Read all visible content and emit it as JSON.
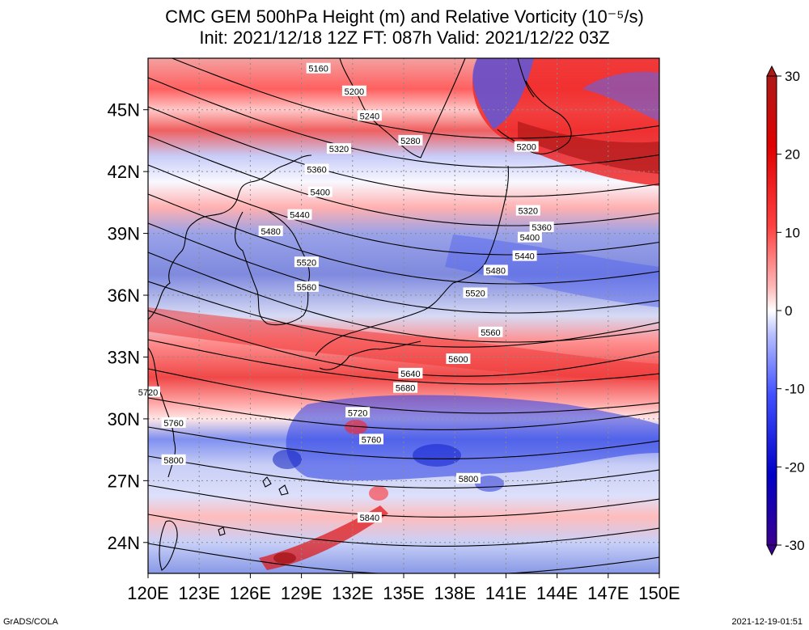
{
  "title": {
    "line1": "CMC GEM 500hPa Height (m) and Relative Vorticity (10⁻⁵/s)",
    "line2": "Init: 2021/12/18 12Z  FT: 087h  Valid: 2021/12/22 03Z"
  },
  "footer": {
    "left": "GrADS/COLA",
    "right": "2021-12-19-01:51"
  },
  "axes": {
    "lon_labels": [
      "120E",
      "123E",
      "126E",
      "129E",
      "132E",
      "135E",
      "138E",
      "141E",
      "144E",
      "147E",
      "150E"
    ],
    "lat_labels": [
      "24N",
      "27N",
      "30N",
      "33N",
      "36N",
      "39N",
      "42N",
      "45N"
    ],
    "lon_range": [
      120,
      150
    ],
    "lat_range": [
      22.5,
      47.5
    ]
  },
  "colorbar": {
    "ticks": [
      "30",
      "20",
      "10",
      "0",
      "-10",
      "-20",
      "-30"
    ],
    "colors_top_to_bottom": [
      "#b01818",
      "#e00000",
      "#ff4040",
      "#ff9a9a",
      "#ffffff",
      "#9aa8ff",
      "#4050ff",
      "#0000c8",
      "#3a0090"
    ]
  },
  "contour_labels": [
    {
      "text": "5160",
      "lon": 130.0,
      "lat": 47.0
    },
    {
      "text": "5200",
      "lon": 132.1,
      "lat": 45.9
    },
    {
      "text": "5240",
      "lon": 133.0,
      "lat": 44.7
    },
    {
      "text": "5280",
      "lon": 135.4,
      "lat": 43.5
    },
    {
      "text": "5320",
      "lon": 131.2,
      "lat": 43.1
    },
    {
      "text": "5360",
      "lon": 129.9,
      "lat": 42.1
    },
    {
      "text": "5400",
      "lon": 130.1,
      "lat": 41.0
    },
    {
      "text": "5440",
      "lon": 128.9,
      "lat": 39.9
    },
    {
      "text": "5480",
      "lon": 127.2,
      "lat": 39.1
    },
    {
      "text": "5520",
      "lon": 129.3,
      "lat": 37.6
    },
    {
      "text": "5560",
      "lon": 129.3,
      "lat": 36.4
    },
    {
      "text": "5600",
      "lon": 138.2,
      "lat": 32.9
    },
    {
      "text": "5640",
      "lon": 135.4,
      "lat": 32.2
    },
    {
      "text": "5680",
      "lon": 135.1,
      "lat": 31.5
    },
    {
      "text": "5720",
      "lon": 132.3,
      "lat": 30.3
    },
    {
      "text": "5760",
      "lon": 133.1,
      "lat": 29.0
    },
    {
      "text": "5800",
      "lon": 138.8,
      "lat": 27.1
    },
    {
      "text": "5840",
      "lon": 133.0,
      "lat": 25.2
    },
    {
      "text": "5200",
      "lon": 142.2,
      "lat": 43.2
    },
    {
      "text": "5320",
      "lon": 142.3,
      "lat": 40.1
    },
    {
      "text": "5360",
      "lon": 143.1,
      "lat": 39.3
    },
    {
      "text": "5400",
      "lon": 142.4,
      "lat": 38.8
    },
    {
      "text": "5440",
      "lon": 142.1,
      "lat": 37.9
    },
    {
      "text": "5480",
      "lon": 140.4,
      "lat": 37.2
    },
    {
      "text": "5520",
      "lon": 139.2,
      "lat": 36.1
    },
    {
      "text": "5560",
      "lon": 140.1,
      "lat": 34.2
    },
    {
      "text": "5720",
      "lon": 120.0,
      "lat": 31.3
    },
    {
      "text": "5760",
      "lon": 121.5,
      "lat": 29.8
    },
    {
      "text": "5800",
      "lon": 121.5,
      "lat": 28.0
    }
  ]
}
